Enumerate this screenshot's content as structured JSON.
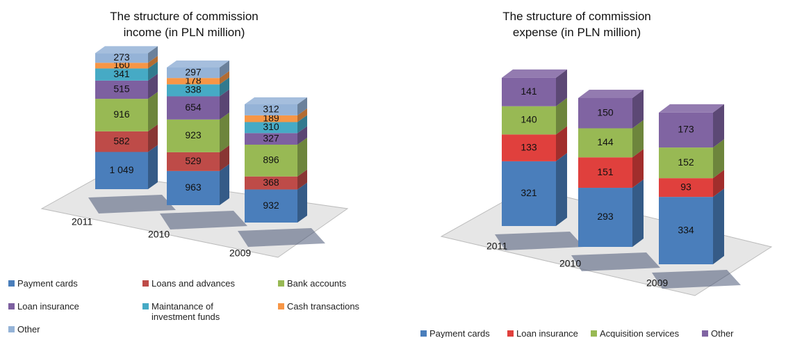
{
  "chart_data": [
    {
      "type": "bar3d_stacked",
      "title": "The structure of commission income (in PLN million)",
      "categories": [
        "2011",
        "2010",
        "2009"
      ],
      "series": [
        {
          "name": "Payment cards",
          "color": "#4a7ebb",
          "values": [
            1049,
            963,
            932
          ],
          "value_labels": [
            "1 049",
            "963",
            "932"
          ]
        },
        {
          "name": "Loans and advances",
          "color": "#be4b48",
          "values": [
            582,
            529,
            368
          ]
        },
        {
          "name": "Bank accounts",
          "color": "#98b954",
          "values": [
            916,
            923,
            896
          ]
        },
        {
          "name": "Loan insurance",
          "color": "#7d60a0",
          "values": [
            515,
            654,
            327
          ]
        },
        {
          "name": "Maintanance of investment funds",
          "color": "#46aac5",
          "values": [
            341,
            338,
            310
          ]
        },
        {
          "name": "Cash transactions",
          "color": "#f79646",
          "values": [
            160,
            178,
            189
          ]
        },
        {
          "name": "Other",
          "color": "#95b3d7",
          "values": [
            273,
            297,
            312
          ]
        }
      ]
    },
    {
      "type": "bar3d_stacked",
      "title": "The structure of commission expense (in PLN million)",
      "categories": [
        "2011",
        "2010",
        "2009"
      ],
      "series": [
        {
          "name": "Payment cards",
          "color": "#4a7ebb",
          "values": [
            321,
            293,
            334
          ]
        },
        {
          "name": "Loan insurance",
          "color": "#e0403d",
          "values": [
            133,
            151,
            93
          ]
        },
        {
          "name": "Acquisition services",
          "color": "#98b954",
          "values": [
            140,
            144,
            152
          ]
        },
        {
          "name": "Other",
          "color": "#8064a2",
          "values": [
            141,
            150,
            173
          ]
        }
      ]
    }
  ]
}
